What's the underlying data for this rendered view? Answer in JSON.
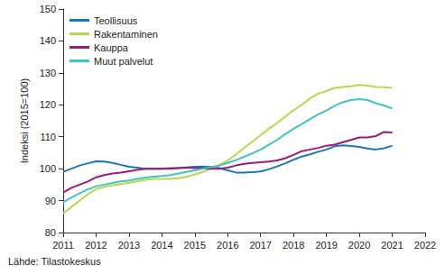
{
  "chart_data": {
    "type": "line",
    "y_label": "Indeksi (2015=100)",
    "caption": "Lähde: Tilastokeskus",
    "x": [
      2011,
      2011.25,
      2011.5,
      2011.75,
      2012,
      2012.25,
      2012.5,
      2012.75,
      2013,
      2013.25,
      2013.5,
      2013.75,
      2014,
      2014.25,
      2014.5,
      2014.75,
      2015,
      2015.25,
      2015.5,
      2015.75,
      2016,
      2016.25,
      2016.5,
      2016.75,
      2017,
      2017.25,
      2017.5,
      2017.75,
      2018,
      2018.25,
      2018.5,
      2018.75,
      2019,
      2019.25,
      2019.5,
      2019.75,
      2020,
      2020.25,
      2020.5,
      2020.75,
      2021
    ],
    "series": [
      {
        "name": "Teollisuus",
        "color": "#1a78b4",
        "values": [
          99,
          100,
          101,
          101.7,
          102.3,
          102.2,
          101.8,
          101.2,
          100.6,
          100.3,
          100,
          100,
          100,
          100.2,
          100.2,
          100.4,
          100.6,
          100.7,
          100.5,
          100.2,
          99.5,
          98.8,
          98.8,
          98.9,
          99.1,
          99.8,
          100.7,
          101.7,
          102.8,
          103.8,
          104.5,
          105.3,
          106,
          107,
          107.3,
          107.1,
          106.8,
          106.3,
          106,
          106.4,
          107.2
        ]
      },
      {
        "name": "Rakentaminen",
        "color": "#b6d84d",
        "values": [
          86,
          88,
          90,
          92,
          93.6,
          94.3,
          94.8,
          95.2,
          95.6,
          96,
          96.5,
          96.8,
          96.8,
          96.8,
          97,
          97.5,
          98.2,
          99,
          100,
          101.2,
          102.5,
          104.5,
          106.5,
          108.5,
          110.5,
          112.5,
          114.3,
          116.3,
          118.3,
          120,
          122,
          123.5,
          124.3,
          125.3,
          125.6,
          125.8,
          126.2,
          126,
          125.6,
          125.5,
          125.3
        ]
      },
      {
        "name": "Kauppa",
        "color": "#9b1b7b",
        "values": [
          92.5,
          94,
          95,
          96,
          97.3,
          98,
          98.5,
          98.8,
          99.2,
          99.6,
          100,
          100,
          100,
          100,
          100.2,
          100.3,
          100.2,
          100.1,
          100,
          100,
          100.3,
          101,
          101.5,
          101.8,
          102,
          102.2,
          102.6,
          103.3,
          104.3,
          105.5,
          106,
          106.5,
          107.2,
          107.5,
          108.3,
          109,
          109.8,
          109.8,
          110.2,
          111.5,
          111.3
        ]
      },
      {
        "name": "Muut palvelut",
        "color": "#3ec5bf",
        "values": [
          89.5,
          91,
          92.3,
          93.5,
          94.5,
          95,
          95.5,
          96,
          96.3,
          96.8,
          97.2,
          97.5,
          97.7,
          98,
          98.5,
          99,
          99.5,
          100,
          100.5,
          101,
          101.8,
          102.7,
          103.7,
          104.8,
          106,
          107.5,
          109,
          110.8,
          112.5,
          114,
          115.5,
          117,
          118.2,
          119.7,
          120.8,
          121.5,
          121.8,
          121.5,
          120.5,
          119.8,
          118.8
        ]
      }
    ],
    "xlim": [
      2011,
      2022
    ],
    "xticks": [
      2011,
      2012,
      2013,
      2014,
      2015,
      2016,
      2017,
      2018,
      2019,
      2020,
      2021,
      2022
    ],
    "ylim": [
      80,
      150
    ],
    "yticks": [
      80,
      90,
      100,
      110,
      120,
      130,
      140,
      150
    ],
    "grid": false,
    "legend": "top-left"
  }
}
